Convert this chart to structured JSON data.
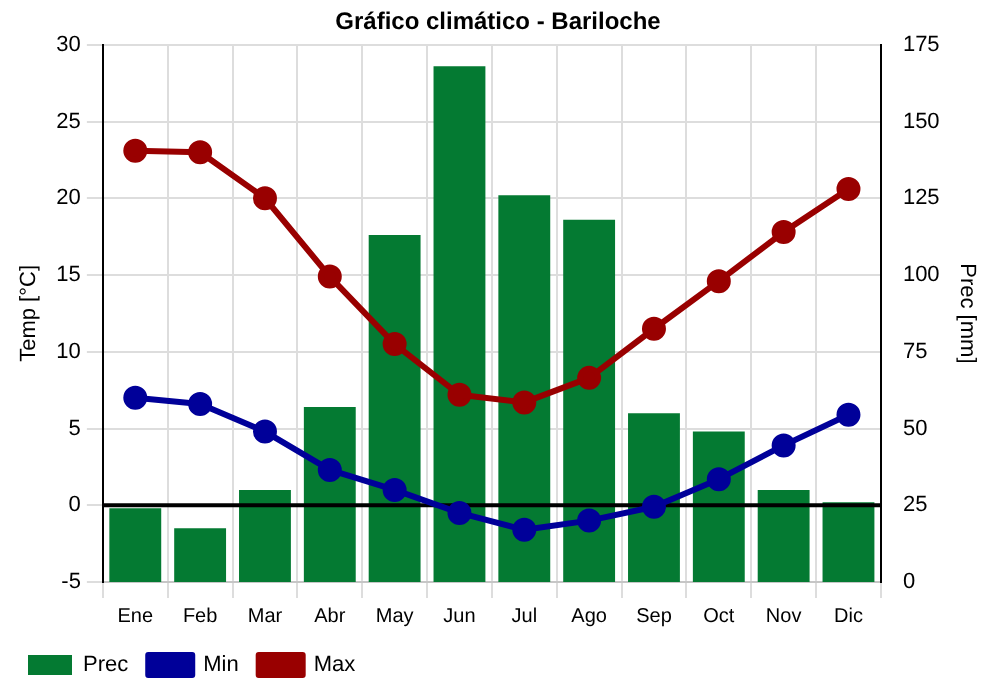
{
  "chart_data": {
    "type": "bar",
    "title": "Gráfico climático - Bariloche",
    "ylabel": "Temp [°C]",
    "y2label": "Prec [mm]",
    "categories": [
      "Ene",
      "Feb",
      "Mar",
      "Abr",
      "May",
      "Jun",
      "Jul",
      "Ago",
      "Sep",
      "Oct",
      "Nov",
      "Dic"
    ],
    "series": [
      {
        "name": "Prec",
        "axis": "y2",
        "color": "#047a32",
        "values": [
          24,
          17.5,
          30,
          57,
          113,
          168,
          126,
          118,
          55,
          49,
          30,
          26
        ]
      },
      {
        "name": "Min",
        "type": "line",
        "color": "#000099",
        "values": [
          7,
          6.6,
          4.8,
          2.3,
          1,
          -0.5,
          -1.6,
          -1,
          -0.1,
          1.7,
          3.9,
          5.9
        ]
      },
      {
        "name": "Max",
        "type": "line",
        "color": "#990000",
        "values": [
          23.1,
          23,
          20,
          14.9,
          10.5,
          7.2,
          6.7,
          8.3,
          11.5,
          14.6,
          17.8,
          20.6
        ]
      }
    ],
    "ylim": [
      -5,
      30
    ],
    "yticks": [
      -5,
      0,
      5,
      10,
      15,
      20,
      25,
      30
    ],
    "y2lim": [
      0,
      175
    ],
    "y2ticks": [
      0,
      25,
      50,
      75,
      100,
      125,
      150,
      175
    ],
    "ref_lines": [
      {
        "axis": "y",
        "value": 0,
        "color": "#000000"
      }
    ],
    "grid": true,
    "legend": "bottom",
    "marker": "circle",
    "line_style": "solid"
  }
}
